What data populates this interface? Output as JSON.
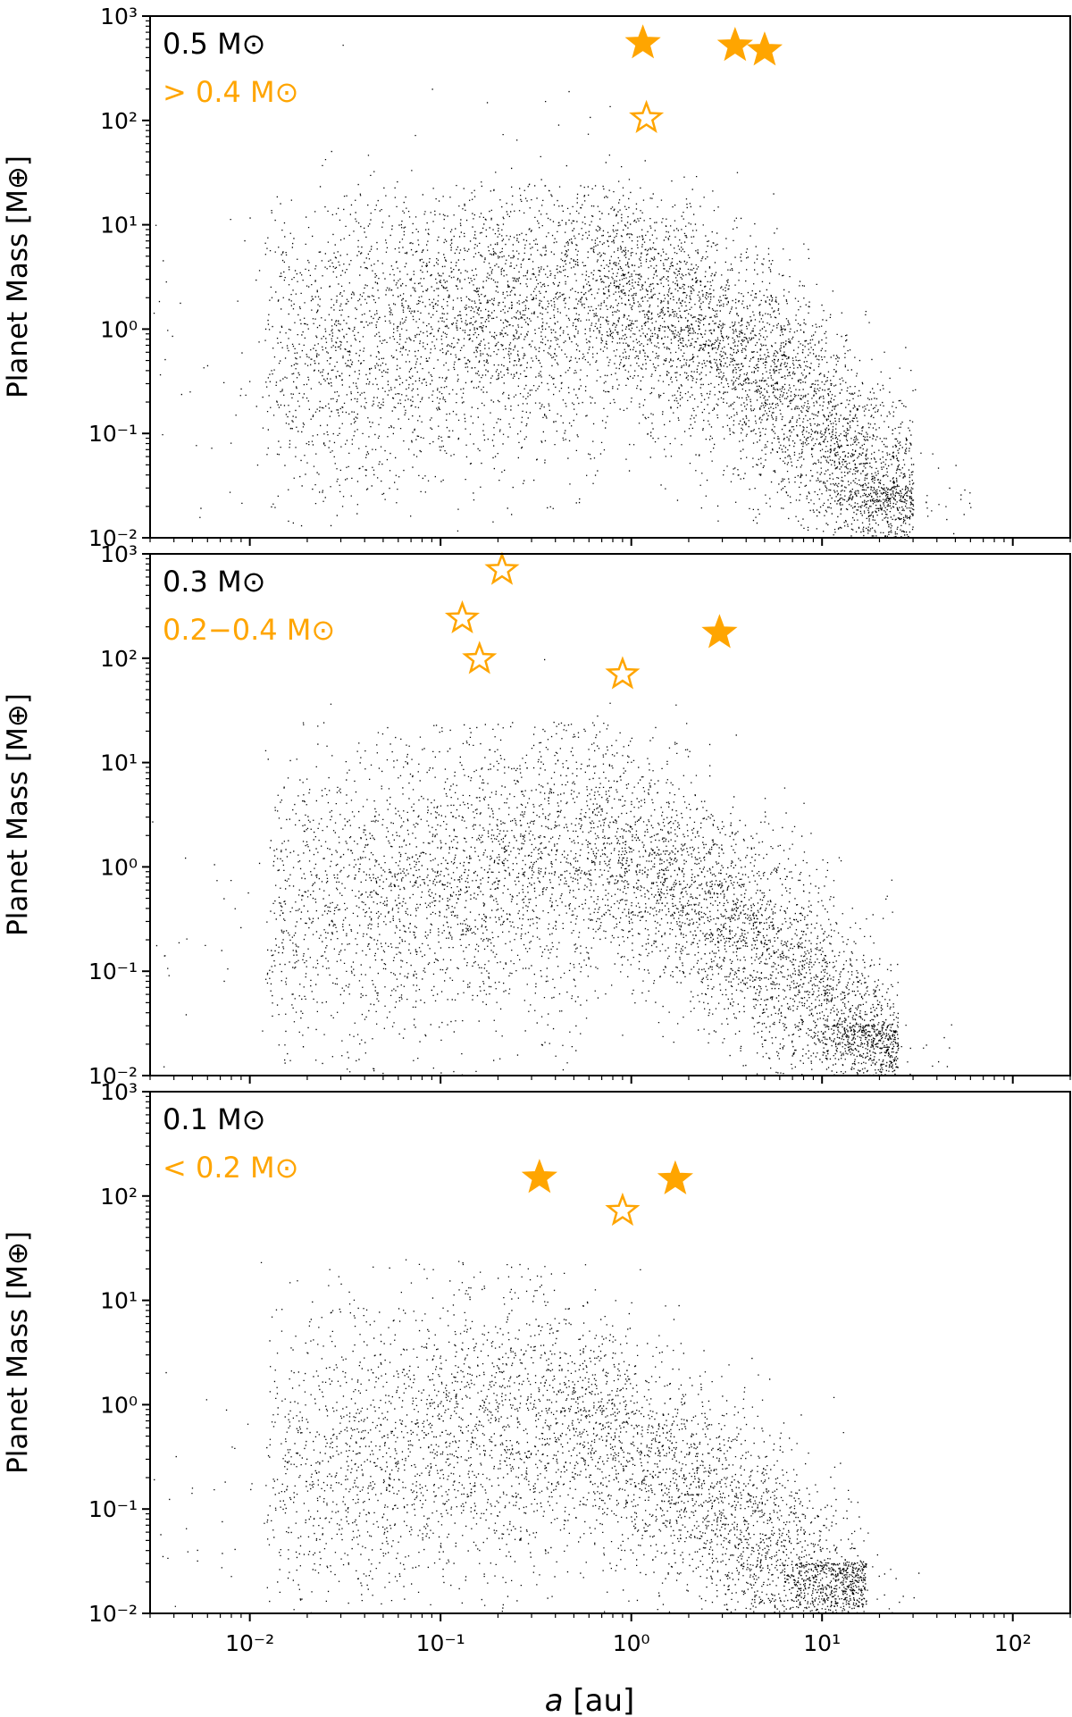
{
  "colors": {
    "points": "#000000",
    "highlight": "#ffa500"
  },
  "shared": {
    "xlabel_italic": "a",
    "xlabel_unit": " [au]",
    "ylabel": "Planet Mass [M⊕]"
  },
  "chart_data": [
    {
      "type": "scatter",
      "xscale": "log",
      "yscale": "log",
      "xlim": [
        0.003,
        200
      ],
      "ylim": [
        0.01,
        1000
      ],
      "ylabel": "Planet Mass [M⊕]",
      "xlabel": "",
      "xticks": [
        "",
        "",
        "",
        "",
        ""
      ],
      "yticks": [
        "10⁻²",
        "10⁻¹",
        "10⁰",
        "10¹",
        "10²",
        "10³"
      ],
      "stellar_mass_label": "0.5 M⊙",
      "observed_range_label": "> 0.4 M⊙",
      "sim_points": "dense cloud of simulated planets, ~30k points",
      "sim_profile": {
        "xmin": 0.003,
        "xmax": 30,
        "peak_a": 0.75,
        "peak_mass": 2.3,
        "density": 7000
      },
      "observed_filled": [
        {
          "a": 1.15,
          "m": 550
        },
        {
          "a": 3.5,
          "m": 520
        },
        {
          "a": 5.0,
          "m": 470
        }
      ],
      "observed_open": [
        {
          "a": 1.2,
          "m": 105
        }
      ]
    },
    {
      "type": "scatter",
      "xscale": "log",
      "yscale": "log",
      "xlim": [
        0.003,
        200
      ],
      "ylim": [
        0.01,
        1000
      ],
      "ylabel": "Planet Mass [M⊕]",
      "xlabel": "",
      "xticks": [
        "",
        "",
        "",
        "",
        ""
      ],
      "yticks": [
        "10⁻²",
        "10⁻¹",
        "10⁰",
        "10¹",
        "10²",
        "10³"
      ],
      "stellar_mass_label": "0.3 M⊙",
      "observed_range_label": "0.2−0.4 M⊙",
      "sim_points": "dense cloud of simulated planets",
      "sim_profile": {
        "xmin": 0.003,
        "xmax": 25,
        "peak_a": 0.7,
        "peak_mass": 1.4,
        "density": 6000
      },
      "observed_filled": [
        {
          "a": 2.9,
          "m": 175
        }
      ],
      "observed_open": [
        {
          "a": 0.21,
          "m": 700
        },
        {
          "a": 0.13,
          "m": 240
        },
        {
          "a": 0.16,
          "m": 98
        },
        {
          "a": 0.9,
          "m": 70
        }
      ]
    },
    {
      "type": "scatter",
      "xscale": "log",
      "yscale": "log",
      "xlim": [
        0.003,
        200
      ],
      "ylim": [
        0.01,
        1000
      ],
      "ylabel": "Planet Mass [M⊕]",
      "xlabel": "a [au]",
      "xticks": [
        "10⁻²",
        "10⁻¹",
        "10⁰",
        "10¹",
        "10²"
      ],
      "yticks": [
        "10⁻²",
        "10⁻¹",
        "10⁰",
        "10¹",
        "10²",
        "10³"
      ],
      "stellar_mass_label": "0.1 M⊙",
      "observed_range_label": "< 0.2 M⊙",
      "sim_points": "dense cloud of simulated planets",
      "sim_profile": {
        "xmin": 0.003,
        "xmax": 17,
        "peak_a": 0.4,
        "peak_mass": 0.7,
        "density": 5000
      },
      "observed_filled": [
        {
          "a": 0.33,
          "m": 150
        },
        {
          "a": 1.7,
          "m": 145
        }
      ],
      "observed_open": [
        {
          "a": 0.9,
          "m": 72
        }
      ]
    }
  ]
}
